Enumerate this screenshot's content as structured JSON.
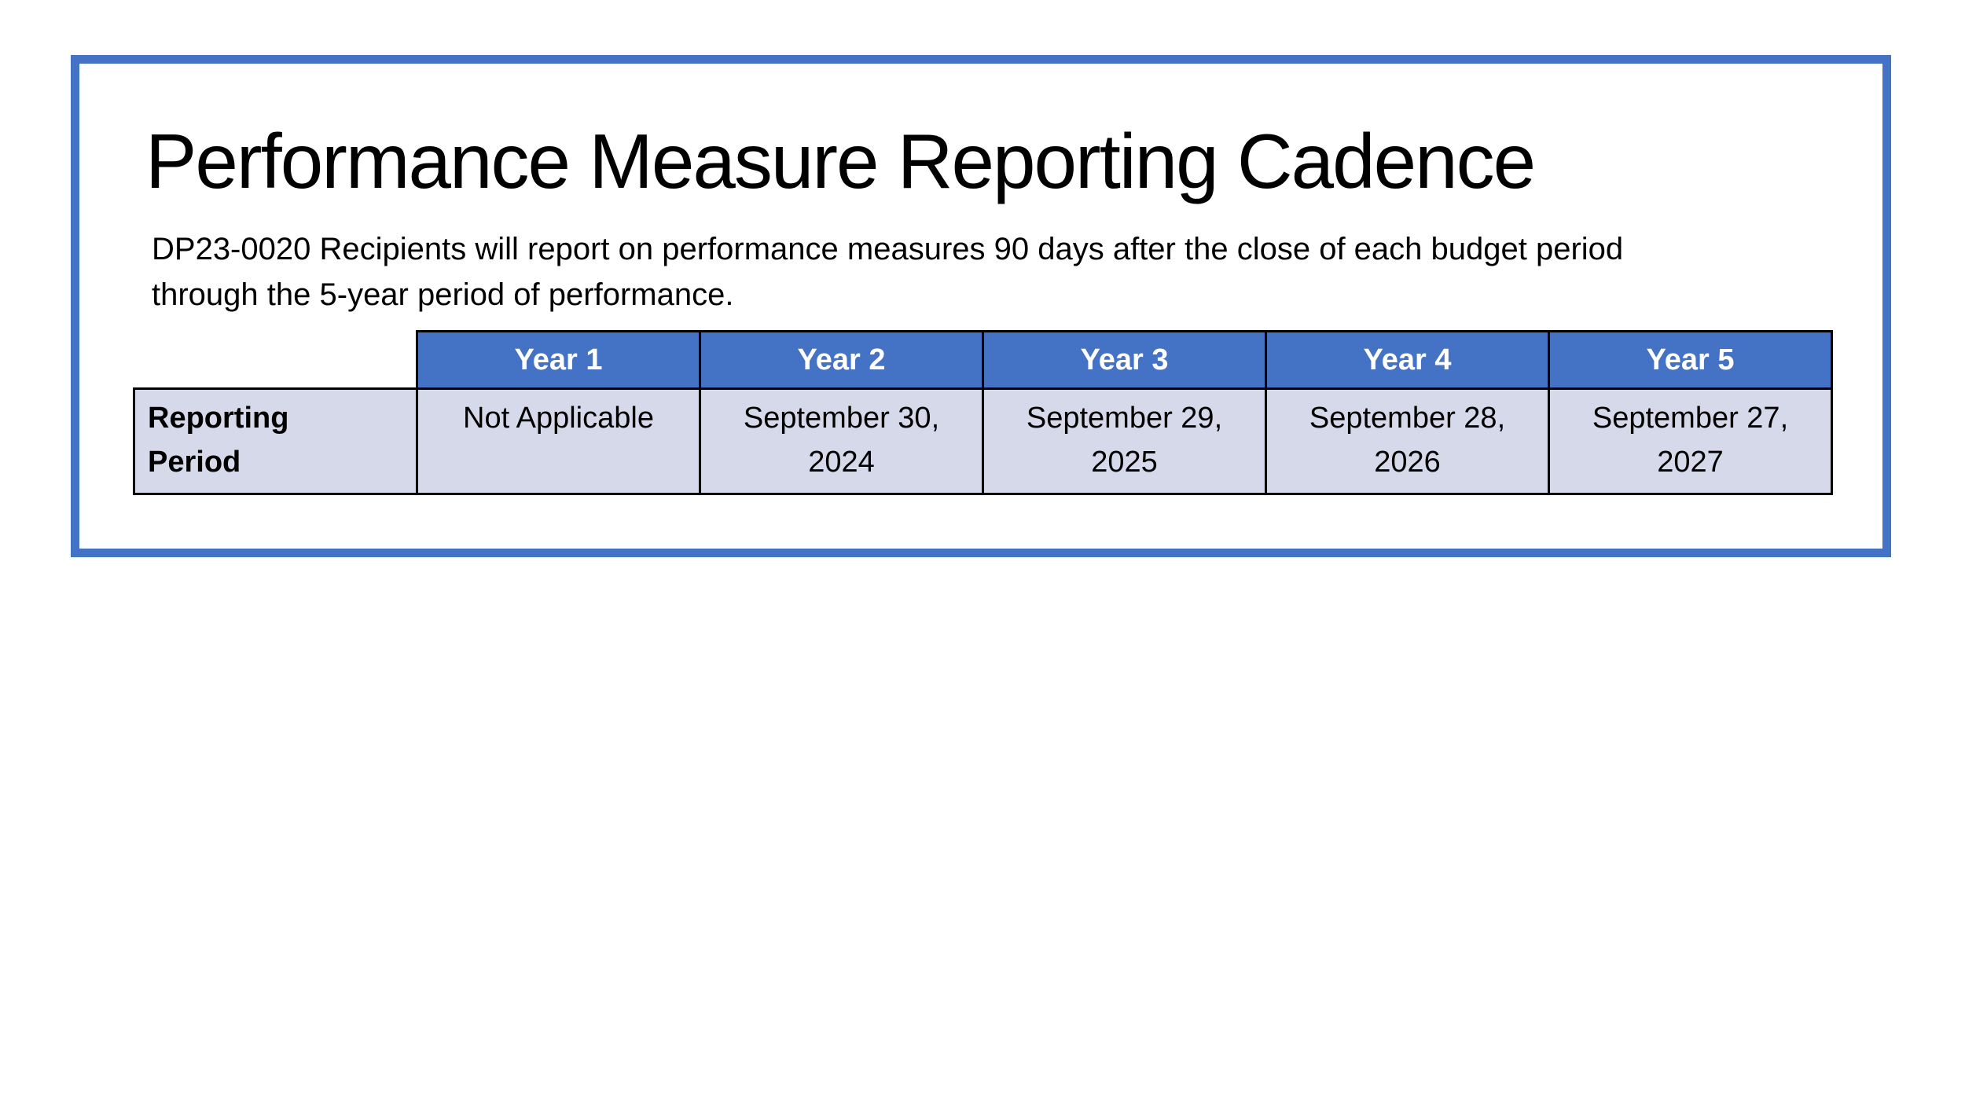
{
  "colors": {
    "accent_blue": "#4472C4",
    "row_fill": "#D5D9EA",
    "table_border": "#000000",
    "frame_border": "#4472C4",
    "text": "#000000",
    "header_text": "#FFFFFF"
  },
  "slide": {
    "title": "Performance Measure Reporting Cadence",
    "description_lines": [
      "DP23-0020 Recipients will report on performance measures 90 days after the close of each budget period",
      "through the 5-year period of performance."
    ],
    "description_full": "DP23-0020 Recipients will report on performance measures 90 days after the close of each budget period through the 5-year period of performance."
  },
  "table": {
    "corner_label": "",
    "columns": [
      "Year 1",
      "Year 2",
      "Year 3",
      "Year 4",
      "Year 5"
    ],
    "rows": [
      {
        "label_lines": [
          "Reporting",
          "Period"
        ],
        "label_full": "Reporting Period",
        "cells": [
          {
            "lines": [
              "Not Applicable"
            ],
            "full": "Not Applicable"
          },
          {
            "lines": [
              "September 30,",
              "2024"
            ],
            "full": "September 30, 2024"
          },
          {
            "lines": [
              "September 29,",
              "2025"
            ],
            "full": "September 29, 2025"
          },
          {
            "lines": [
              "September 28,",
              "2026"
            ],
            "full": "September 28, 2026"
          },
          {
            "lines": [
              "September 27,",
              "2027"
            ],
            "full": "September 27, 2027"
          }
        ]
      }
    ]
  }
}
